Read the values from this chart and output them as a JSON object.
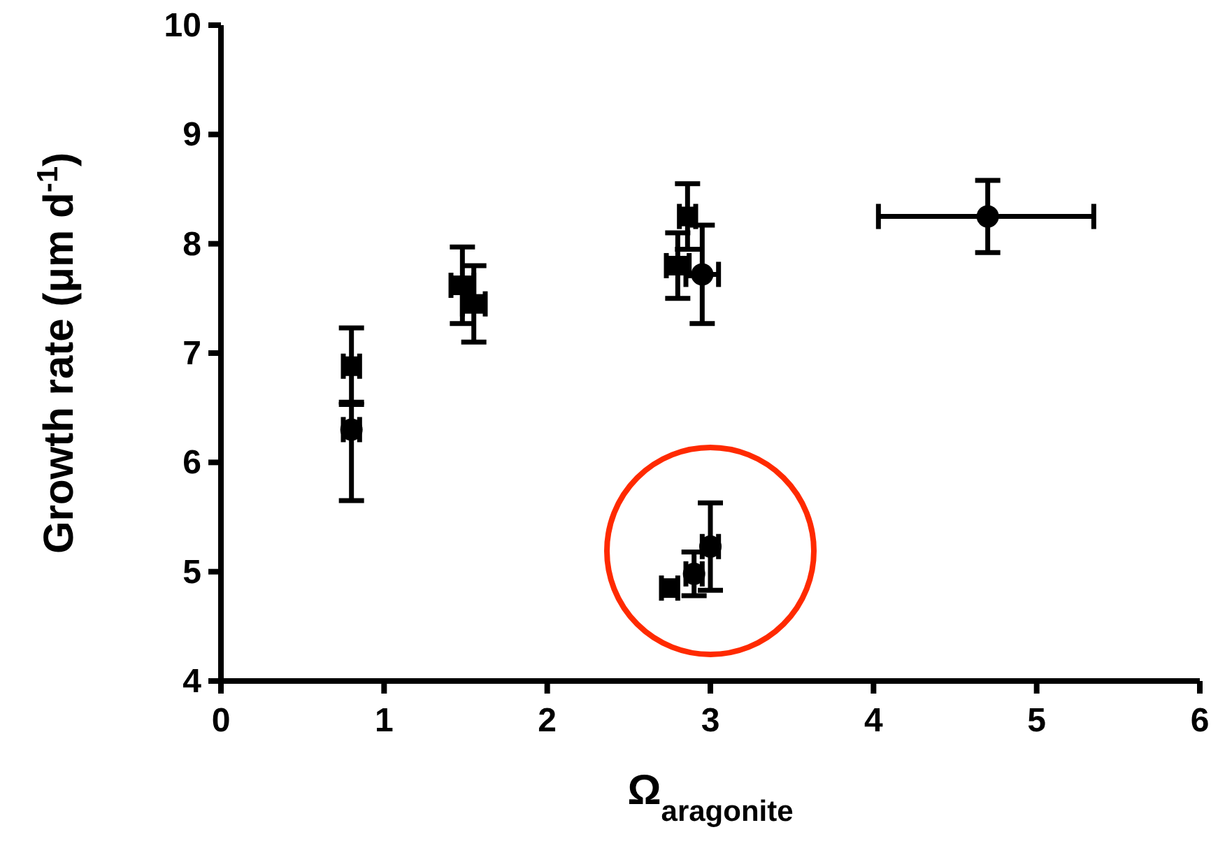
{
  "chart_data": {
    "type": "scatter",
    "xlabel": "Ω$_{aragonite}$",
    "ylabel": "Growth rate (μm d$^{-1}$)",
    "xlim": [
      0,
      6
    ],
    "ylim": [
      4,
      10
    ],
    "xticks": [
      0,
      1,
      2,
      3,
      4,
      5,
      6
    ],
    "yticks": [
      4,
      5,
      6,
      7,
      8,
      9,
      10
    ],
    "grid": false,
    "series": [
      {
        "color": "#000000",
        "marker": "square",
        "x": [
          0.8,
          1.48,
          1.55,
          2.86,
          2.8,
          2.75
        ],
        "values": [
          6.88,
          7.62,
          7.45,
          8.25,
          7.8,
          4.85
        ],
        "errors": [
          0.35,
          0.35,
          0.35,
          0.3,
          0.3,
          null
        ],
        "xerrors": [
          0.05,
          0.07,
          0.07,
          0.05,
          0.07,
          0.05
        ]
      },
      {
        "color": "#000000",
        "marker": "circle",
        "x": [
          0.8,
          2.95,
          2.9,
          3.0,
          4.7
        ],
        "values": [
          6.3,
          7.72,
          4.98,
          5.23,
          8.25
        ],
        "errors": [
          [
            5.65,
            6.55
          ],
          0.45,
          0.2,
          [
            4.83,
            5.63
          ],
          0.33
        ],
        "xerrors": [
          0.05,
          0.1,
          0.05,
          0.05,
          [
            4.03,
            5.35
          ]
        ]
      }
    ]
  }
}
